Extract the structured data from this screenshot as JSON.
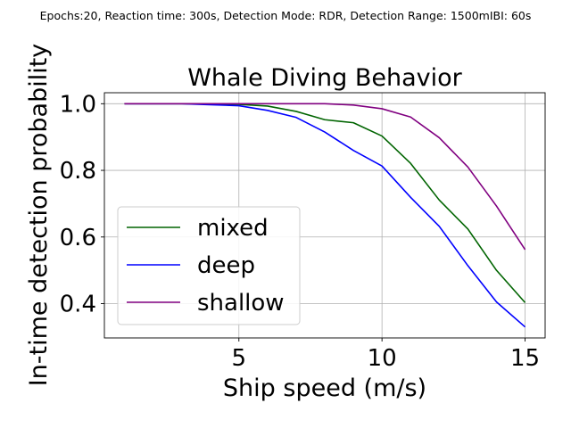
{
  "suptitle": "Epochs:20, Reaction time: 300s, Detection Mode: RDR, Detection Range: 1500mIBI: 60s",
  "chart_data": {
    "type": "line",
    "title": "Whale Diving Behavior",
    "xlabel": "Ship speed (m/s)",
    "ylabel": "In-time detection probability",
    "xlim": [
      0.3,
      15.7
    ],
    "ylim": [
      0.297,
      1.033
    ],
    "xticks": [
      5,
      10,
      15
    ],
    "yticks": [
      0.4,
      0.6,
      0.8,
      1.0
    ],
    "ytick_labels": [
      "0.4",
      "0.6",
      "0.8",
      "1.0"
    ],
    "grid": true,
    "legend_position": "lower-left",
    "x": [
      1,
      2,
      3,
      4,
      5,
      6,
      7,
      8,
      9,
      10,
      11,
      12,
      13,
      14,
      15
    ],
    "series": [
      {
        "name": "mixed",
        "color": "#006400",
        "values": [
          1.0,
          1.0,
          1.0,
          0.999,
          0.998,
          0.993,
          0.977,
          0.952,
          0.943,
          0.903,
          0.821,
          0.711,
          0.624,
          0.5,
          0.403
        ]
      },
      {
        "name": "deep",
        "color": "#0000ff",
        "values": [
          1.0,
          1.0,
          1.0,
          0.997,
          0.994,
          0.98,
          0.959,
          0.915,
          0.86,
          0.813,
          0.719,
          0.632,
          0.514,
          0.405,
          0.33
        ]
      },
      {
        "name": "shallow",
        "color": "#800080",
        "values": [
          1.0,
          1.0,
          1.0,
          1.0,
          1.0,
          1.0,
          1.0,
          1.0,
          0.996,
          0.985,
          0.96,
          0.898,
          0.81,
          0.693,
          0.562
        ]
      }
    ]
  }
}
